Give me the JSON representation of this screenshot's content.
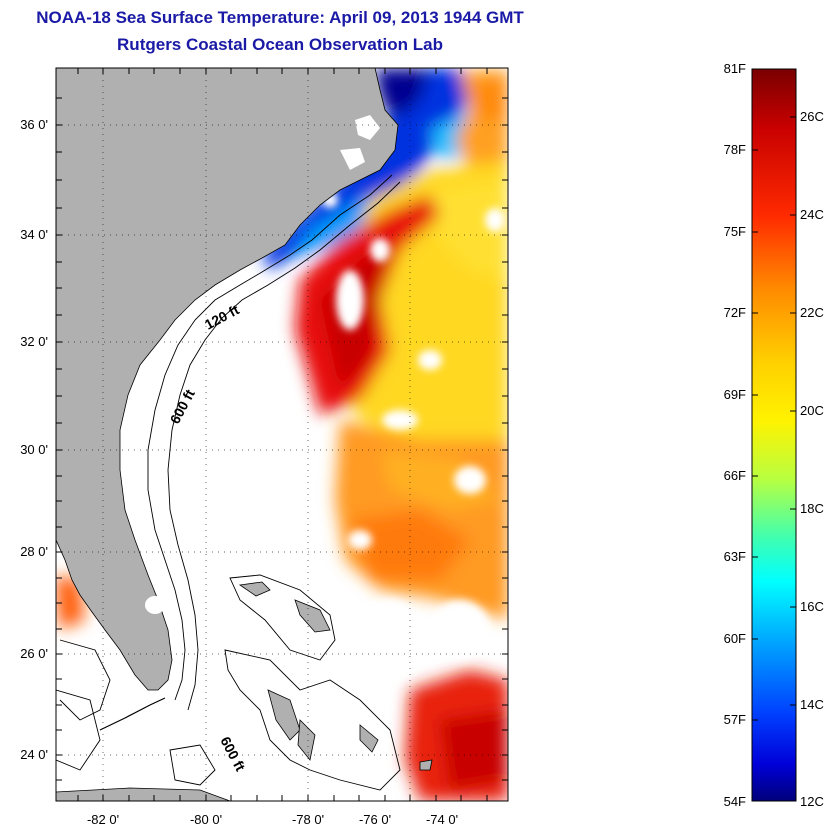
{
  "header": {
    "title": "NOAA-18 Sea Surface Temperature:  April 09, 2013 1944 GMT",
    "subtitle": "Rutgers Coastal Ocean Observation Lab"
  },
  "map": {
    "lat_labels": [
      "36 0'",
      "34 0'",
      "32 0'",
      "30 0'",
      "28 0'",
      "26 0'",
      "24 0'"
    ],
    "lon_labels": [
      "-82 0'",
      "-80 0'",
      "-78 0'",
      "-76 0'",
      "-74 0'"
    ],
    "contour_labels": [
      "120 ft",
      "600 ft",
      "600 ft"
    ],
    "land_color": "#b0b0b0",
    "grid": "dotted"
  },
  "colorbar": {
    "fahrenheit_labels": [
      "81F",
      "78F",
      "75F",
      "72F",
      "69F",
      "66F",
      "63F",
      "60F",
      "57F",
      "54F"
    ],
    "celsius_labels": [
      "26C",
      "24C",
      "22C",
      "20C",
      "18C",
      "16C",
      "14C",
      "12C"
    ],
    "colors": [
      "#7a0000",
      "#d40000",
      "#ff4000",
      "#ff9a00",
      "#ffe600",
      "#b8ff40",
      "#40ffb0",
      "#00c8ff",
      "#0060ff",
      "#0000cc",
      "#00007a"
    ]
  }
}
